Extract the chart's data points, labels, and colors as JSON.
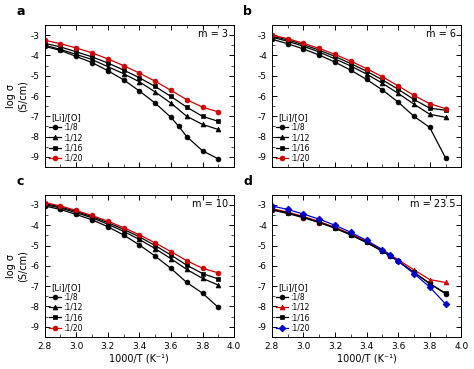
{
  "panels": [
    {
      "label": "a",
      "m_label": "m = 3",
      "series": [
        {
          "ratio": ":1/8",
          "color": "#000000",
          "marker": "o",
          "x": [
            2.8,
            2.9,
            3.0,
            3.1,
            3.2,
            3.3,
            3.4,
            3.5,
            3.6,
            3.65,
            3.7,
            3.8,
            3.9
          ],
          "y": [
            -3.55,
            -3.75,
            -4.05,
            -4.35,
            -4.75,
            -5.2,
            -5.75,
            -6.35,
            -7.05,
            -7.5,
            -8.0,
            -8.7,
            -9.1
          ]
        },
        {
          "ratio": ":1/12",
          "color": "#000000",
          "marker": "^",
          "x": [
            2.8,
            2.9,
            3.0,
            3.1,
            3.2,
            3.3,
            3.4,
            3.5,
            3.6,
            3.7,
            3.8,
            3.9
          ],
          "y": [
            -3.5,
            -3.7,
            -3.95,
            -4.2,
            -4.55,
            -4.9,
            -5.3,
            -5.8,
            -6.35,
            -7.0,
            -7.4,
            -7.65
          ]
        },
        {
          "ratio": ":1/16",
          "color": "#000000",
          "marker": "s",
          "x": [
            2.8,
            2.9,
            3.0,
            3.1,
            3.2,
            3.3,
            3.4,
            3.5,
            3.6,
            3.7,
            3.8,
            3.9
          ],
          "y": [
            -3.4,
            -3.58,
            -3.82,
            -4.07,
            -4.37,
            -4.72,
            -5.1,
            -5.53,
            -6.02,
            -6.55,
            -7.0,
            -7.25
          ]
        },
        {
          "ratio": ":1/20",
          "color": "#cc0000",
          "marker": "o",
          "x": [
            2.8,
            2.9,
            3.0,
            3.1,
            3.2,
            3.3,
            3.4,
            3.5,
            3.6,
            3.7,
            3.8,
            3.9
          ],
          "y": [
            -3.25,
            -3.42,
            -3.63,
            -3.87,
            -4.17,
            -4.5,
            -4.87,
            -5.27,
            -5.72,
            -6.18,
            -6.55,
            -6.78
          ]
        }
      ]
    },
    {
      "label": "b",
      "m_label": "m = 6",
      "series": [
        {
          "ratio": ":1/8",
          "color": "#000000",
          "marker": "o",
          "x": [
            2.8,
            2.9,
            3.0,
            3.1,
            3.2,
            3.3,
            3.4,
            3.5,
            3.6,
            3.7,
            3.8,
            3.9
          ],
          "y": [
            -3.2,
            -3.42,
            -3.68,
            -3.98,
            -4.33,
            -4.73,
            -5.18,
            -5.7,
            -6.3,
            -7.0,
            -7.55,
            -9.05
          ]
        },
        {
          "ratio": ":1/12",
          "color": "#000000",
          "marker": "^",
          "x": [
            2.8,
            2.9,
            3.0,
            3.1,
            3.2,
            3.3,
            3.4,
            3.5,
            3.6,
            3.7,
            3.8,
            3.9
          ],
          "y": [
            -3.1,
            -3.3,
            -3.55,
            -3.83,
            -4.17,
            -4.52,
            -4.92,
            -5.37,
            -5.87,
            -6.4,
            -6.9,
            -7.05
          ]
        },
        {
          "ratio": ":1/16",
          "color": "#000000",
          "marker": "s",
          "x": [
            2.8,
            2.9,
            3.0,
            3.1,
            3.2,
            3.3,
            3.4,
            3.5,
            3.6,
            3.7,
            3.8,
            3.9
          ],
          "y": [
            -3.05,
            -3.23,
            -3.47,
            -3.74,
            -4.05,
            -4.4,
            -4.78,
            -5.2,
            -5.67,
            -6.17,
            -6.6,
            -6.7
          ]
        },
        {
          "ratio": ":1/20",
          "color": "#cc0000",
          "marker": "o",
          "x": [
            2.8,
            2.9,
            3.0,
            3.1,
            3.2,
            3.3,
            3.4,
            3.5,
            3.6,
            3.7,
            3.8,
            3.9
          ],
          "y": [
            -3.0,
            -3.17,
            -3.4,
            -3.65,
            -3.95,
            -4.28,
            -4.65,
            -5.05,
            -5.5,
            -5.97,
            -6.38,
            -6.62
          ]
        }
      ]
    },
    {
      "label": "c",
      "m_label": "m = 10",
      "series": [
        {
          "ratio": ":1/8",
          "color": "#000000",
          "marker": "o",
          "x": [
            2.8,
            2.9,
            3.0,
            3.1,
            3.2,
            3.3,
            3.4,
            3.5,
            3.6,
            3.7,
            3.8,
            3.9
          ],
          "y": [
            -3.05,
            -3.22,
            -3.47,
            -3.73,
            -4.07,
            -4.48,
            -4.97,
            -5.52,
            -6.13,
            -6.82,
            -7.35,
            -8.05
          ]
        },
        {
          "ratio": ":1/12",
          "color": "#000000",
          "marker": "^",
          "x": [
            2.8,
            2.9,
            3.0,
            3.1,
            3.2,
            3.3,
            3.4,
            3.5,
            3.6,
            3.7,
            3.8,
            3.9
          ],
          "y": [
            -2.98,
            -3.15,
            -3.38,
            -3.63,
            -3.95,
            -4.3,
            -4.7,
            -5.15,
            -5.65,
            -6.18,
            -6.62,
            -6.95
          ]
        },
        {
          "ratio": ":1/16",
          "color": "#000000",
          "marker": "s",
          "x": [
            2.8,
            2.9,
            3.0,
            3.1,
            3.2,
            3.3,
            3.4,
            3.5,
            3.6,
            3.7,
            3.8,
            3.9
          ],
          "y": [
            -2.93,
            -3.1,
            -3.32,
            -3.57,
            -3.87,
            -4.2,
            -4.57,
            -5.0,
            -5.47,
            -5.97,
            -6.38,
            -6.65
          ]
        },
        {
          "ratio": ":1/20",
          "color": "#cc0000",
          "marker": "o",
          "x": [
            2.8,
            2.9,
            3.0,
            3.1,
            3.2,
            3.3,
            3.4,
            3.5,
            3.6,
            3.7,
            3.8,
            3.9
          ],
          "y": [
            -2.88,
            -3.05,
            -3.27,
            -3.52,
            -3.8,
            -4.12,
            -4.47,
            -4.87,
            -5.3,
            -5.75,
            -6.12,
            -6.35
          ]
        }
      ]
    },
    {
      "label": "d",
      "m_label": "m = 23.5",
      "series": [
        {
          "ratio": ":1/8",
          "color": "#000000",
          "marker": "o",
          "x": [
            2.8,
            2.9,
            3.0,
            3.1,
            3.2,
            3.3,
            3.4,
            3.5,
            3.55,
            3.6,
            3.7,
            3.8,
            3.9
          ],
          "y": [
            -3.25,
            -3.42,
            -3.63,
            -3.87,
            -4.15,
            -4.48,
            -4.85,
            -5.28,
            -5.52,
            -5.77,
            -6.32,
            -6.87,
            -7.38
          ]
        },
        {
          "ratio": ":1/12",
          "color": "#cc0000",
          "marker": "^",
          "x": [
            2.8,
            2.9,
            3.0,
            3.1,
            3.2,
            3.3,
            3.4,
            3.5,
            3.55,
            3.6,
            3.7,
            3.8,
            3.9
          ],
          "y": [
            -3.18,
            -3.35,
            -3.57,
            -3.82,
            -4.1,
            -4.43,
            -4.8,
            -5.22,
            -5.45,
            -5.7,
            -6.2,
            -6.68,
            -6.82
          ]
        },
        {
          "ratio": ":1/16",
          "color": "#000000",
          "marker": "s",
          "x": [
            2.8,
            2.9,
            3.0,
            3.1,
            3.2,
            3.3,
            3.4,
            3.5,
            3.55,
            3.6,
            3.7,
            3.8,
            3.9
          ],
          "y": [
            -3.22,
            -3.38,
            -3.6,
            -3.85,
            -4.13,
            -4.47,
            -4.85,
            -5.28,
            -5.52,
            -5.78,
            -6.33,
            -6.88,
            -7.35
          ]
        },
        {
          "ratio": ":1/20",
          "color": "#0000cc",
          "marker": "D",
          "x": [
            2.8,
            2.9,
            3.0,
            3.1,
            3.2,
            3.3,
            3.4,
            3.5,
            3.55,
            3.6,
            3.7,
            3.8,
            3.9
          ],
          "y": [
            -3.05,
            -3.22,
            -3.45,
            -3.7,
            -4.0,
            -4.35,
            -4.75,
            -5.2,
            -5.47,
            -5.77,
            -6.38,
            -7.05,
            -7.88
          ]
        }
      ]
    }
  ],
  "xlim": [
    2.8,
    4.0
  ],
  "ylim": [
    -9.5,
    -2.5
  ],
  "yticks": [
    -9,
    -8,
    -7,
    -6,
    -5,
    -4,
    -3
  ],
  "xticks": [
    2.8,
    3.0,
    3.2,
    3.4,
    3.6,
    3.8,
    4.0
  ],
  "xlabel": "1000/T (K⁻¹)",
  "ylabel_line1": "log σ",
  "ylabel_line2": "(S/cm)",
  "legend_title": "[Li]/[O]",
  "background_color": "#ffffff"
}
